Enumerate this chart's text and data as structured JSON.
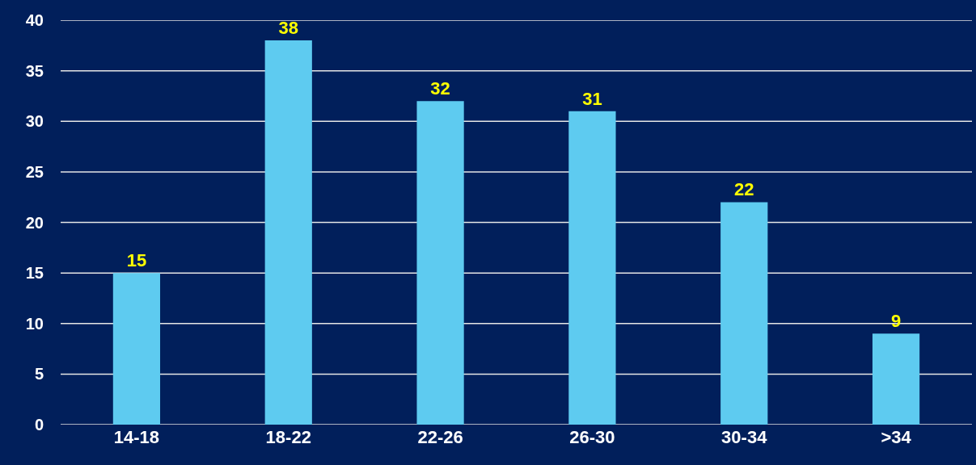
{
  "chart_data": {
    "type": "bar",
    "categories": [
      "14-18",
      "18-22",
      "22-26",
      "26-30",
      "30-34",
      ">34"
    ],
    "values": [
      15,
      38,
      32,
      31,
      22,
      9
    ],
    "color": "#5ecbf0",
    "ylim": [
      0,
      40
    ],
    "yticks": [
      0,
      5,
      10,
      15,
      20,
      25,
      30,
      35,
      40
    ],
    "grid": "y",
    "data_labels": true
  }
}
